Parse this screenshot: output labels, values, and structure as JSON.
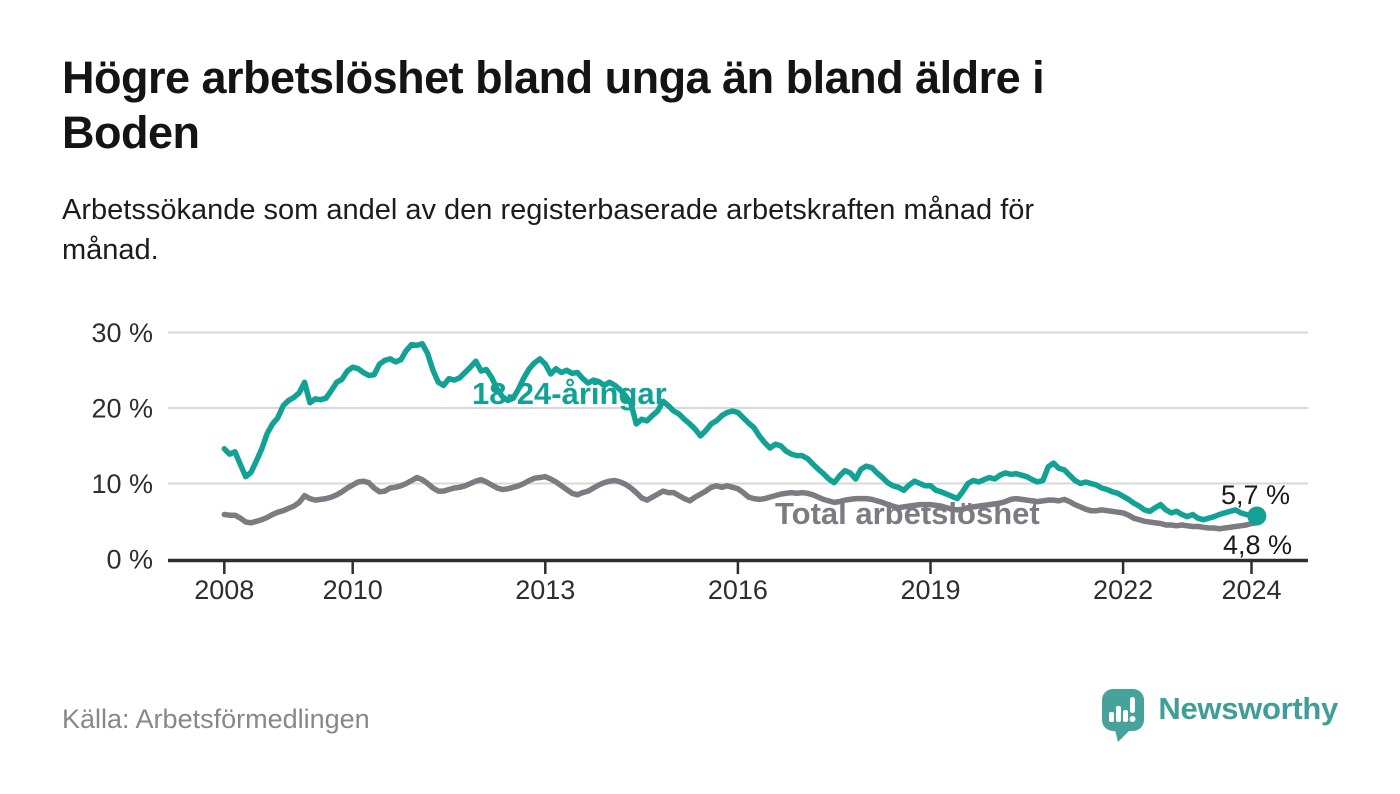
{
  "header": {
    "title": "Högre arbetslöshet bland unga än bland äldre i\nBoden",
    "subtitle": "Arbetssökande som andel av den registerbaserade arbetskraften månad för\nmånad."
  },
  "footer": {
    "source": "Källa: Arbetsförmedlingen",
    "brand": "Newsworthy"
  },
  "colors": {
    "accent_teal": "#12a195",
    "series_gray": "#7b7b81",
    "grid": "#d8d8d8",
    "axis": "#2e2e2e",
    "text_dark": "#1a1a1a",
    "muted": "#87878c",
    "logo_teal": "#47a29b"
  },
  "chart_data": {
    "type": "line",
    "title": "Högre arbetslöshet bland unga än bland äldre i Boden",
    "subtitle": "Arbetssökande som andel av den registerbaserade arbetskraften månad för månad.",
    "source": "Källa: Arbetsförmedlingen",
    "x_unit": "month",
    "x_start": "2008-01",
    "x_end": "2024-02",
    "grid": "horizontal",
    "legend_position": "inline-labels",
    "ylim": [
      0,
      31
    ],
    "x_axis": {
      "ticks": [
        "2008",
        "2010",
        "2013",
        "2016",
        "2019",
        "2022",
        "2024"
      ]
    },
    "y_axis": {
      "values": [
        0,
        10,
        20,
        30
      ],
      "labels": [
        "0 %",
        "10 %",
        "20 %",
        "30 %"
      ]
    },
    "series": [
      {
        "name": "18-24-åringar",
        "color": "#12a195",
        "end_label": "5,7 %",
        "end_value": 5.7,
        "end_dot": true,
        "values": [
          14.6,
          13.9,
          14.2,
          12.5,
          10.9,
          11.5,
          13.0,
          14.6,
          16.6,
          17.9,
          18.7,
          20.3,
          21.0,
          21.4,
          22.0,
          23.4,
          20.7,
          21.2,
          21.1,
          21.3,
          22.3,
          23.4,
          23.8,
          24.9,
          25.4,
          25.2,
          24.7,
          24.3,
          24.4,
          25.8,
          26.3,
          26.5,
          26.1,
          26.4,
          27.6,
          28.4,
          28.3,
          28.5,
          27.2,
          25.0,
          23.4,
          23.0,
          23.9,
          23.7,
          24.0,
          24.7,
          25.4,
          26.2,
          24.9,
          25.1,
          24.0,
          22.5,
          21.5,
          21.0,
          21.3,
          22.5,
          24.0,
          25.2,
          26.0,
          26.5,
          25.8,
          24.5,
          25.2,
          24.7,
          25.0,
          24.6,
          24.7,
          23.9,
          23.3,
          23.7,
          23.5,
          23.0,
          23.4,
          23.0,
          22.4,
          21.6,
          20.6,
          17.9,
          18.5,
          18.3,
          19.0,
          19.6,
          20.9,
          20.3,
          19.6,
          19.2,
          18.5,
          17.9,
          17.2,
          16.3,
          17.0,
          17.9,
          18.3,
          19.0,
          19.4,
          19.6,
          19.4,
          18.7,
          18.0,
          17.4,
          16.3,
          15.4,
          14.7,
          15.2,
          15.0,
          14.3,
          13.9,
          13.7,
          13.7,
          13.3,
          12.6,
          11.9,
          11.3,
          10.6,
          10.1,
          11.0,
          11.7,
          11.4,
          10.6,
          11.9,
          12.3,
          12.1,
          11.4,
          10.8,
          10.1,
          9.7,
          9.5,
          9.1,
          9.8,
          10.3,
          10.0,
          9.7,
          9.7,
          9.1,
          8.9,
          8.6,
          8.3,
          8.0,
          8.9,
          10.0,
          10.4,
          10.2,
          10.5,
          10.8,
          10.6,
          11.1,
          11.4,
          11.2,
          11.3,
          11.1,
          10.9,
          10.5,
          10.2,
          10.4,
          12.2,
          12.7,
          12.0,
          11.8,
          11.1,
          10.4,
          10.0,
          10.2,
          10.0,
          9.8,
          9.4,
          9.2,
          8.9,
          8.7,
          8.3,
          7.9,
          7.4,
          7.0,
          6.5,
          6.3,
          6.8,
          7.2,
          6.5,
          6.1,
          6.3,
          5.9,
          5.6,
          5.9,
          5.4,
          5.2,
          5.4,
          5.6,
          5.9,
          6.1,
          6.3,
          6.5,
          6.1,
          5.9,
          5.8,
          5.7
        ]
      },
      {
        "name": "Total arbetslöshet",
        "color": "#7b7b81",
        "end_label": "4,8 %",
        "end_value": 4.8,
        "end_dot": false,
        "values": [
          5.9,
          5.8,
          5.8,
          5.4,
          4.9,
          4.8,
          5.0,
          5.2,
          5.5,
          5.9,
          6.2,
          6.4,
          6.7,
          7.0,
          7.5,
          8.4,
          8.0,
          7.8,
          7.9,
          8.0,
          8.2,
          8.5,
          8.9,
          9.4,
          9.8,
          10.2,
          10.3,
          10.1,
          9.4,
          8.9,
          9.0,
          9.4,
          9.5,
          9.7,
          10.0,
          10.4,
          10.8,
          10.5,
          10.0,
          9.4,
          9.0,
          9.0,
          9.2,
          9.4,
          9.5,
          9.7,
          10.0,
          10.3,
          10.5,
          10.2,
          9.8,
          9.4,
          9.2,
          9.3,
          9.5,
          9.7,
          10.0,
          10.4,
          10.7,
          10.8,
          10.9,
          10.6,
          10.2,
          9.7,
          9.2,
          8.7,
          8.5,
          8.8,
          9.0,
          9.4,
          9.8,
          10.1,
          10.3,
          10.4,
          10.2,
          9.9,
          9.4,
          8.8,
          8.1,
          7.8,
          8.2,
          8.6,
          9.0,
          8.8,
          8.8,
          8.4,
          8.0,
          7.7,
          8.2,
          8.6,
          9.0,
          9.5,
          9.7,
          9.5,
          9.7,
          9.5,
          9.3,
          8.8,
          8.2,
          8.0,
          7.9,
          8.0,
          8.2,
          8.4,
          8.6,
          8.7,
          8.8,
          8.7,
          8.8,
          8.7,
          8.5,
          8.2,
          7.9,
          7.7,
          7.5,
          7.6,
          7.8,
          7.9,
          8.0,
          8.0,
          8.0,
          7.9,
          7.7,
          7.5,
          7.2,
          7.0,
          6.8,
          6.9,
          7.0,
          7.1,
          7.2,
          7.2,
          7.2,
          7.1,
          7.0,
          6.8,
          6.6,
          6.5,
          6.6,
          6.8,
          6.9,
          7.0,
          7.1,
          7.2,
          7.3,
          7.4,
          7.6,
          7.9,
          8.0,
          7.9,
          7.8,
          7.7,
          7.6,
          7.7,
          7.8,
          7.8,
          7.7,
          7.9,
          7.6,
          7.2,
          6.9,
          6.6,
          6.4,
          6.4,
          6.5,
          6.4,
          6.3,
          6.2,
          6.1,
          5.8,
          5.4,
          5.2,
          5.0,
          4.9,
          4.8,
          4.7,
          4.5,
          4.5,
          4.4,
          4.5,
          4.4,
          4.3,
          4.3,
          4.2,
          4.1,
          4.1,
          4.0,
          4.1,
          4.2,
          4.3,
          4.4,
          4.5,
          4.7,
          4.8
        ]
      }
    ]
  }
}
